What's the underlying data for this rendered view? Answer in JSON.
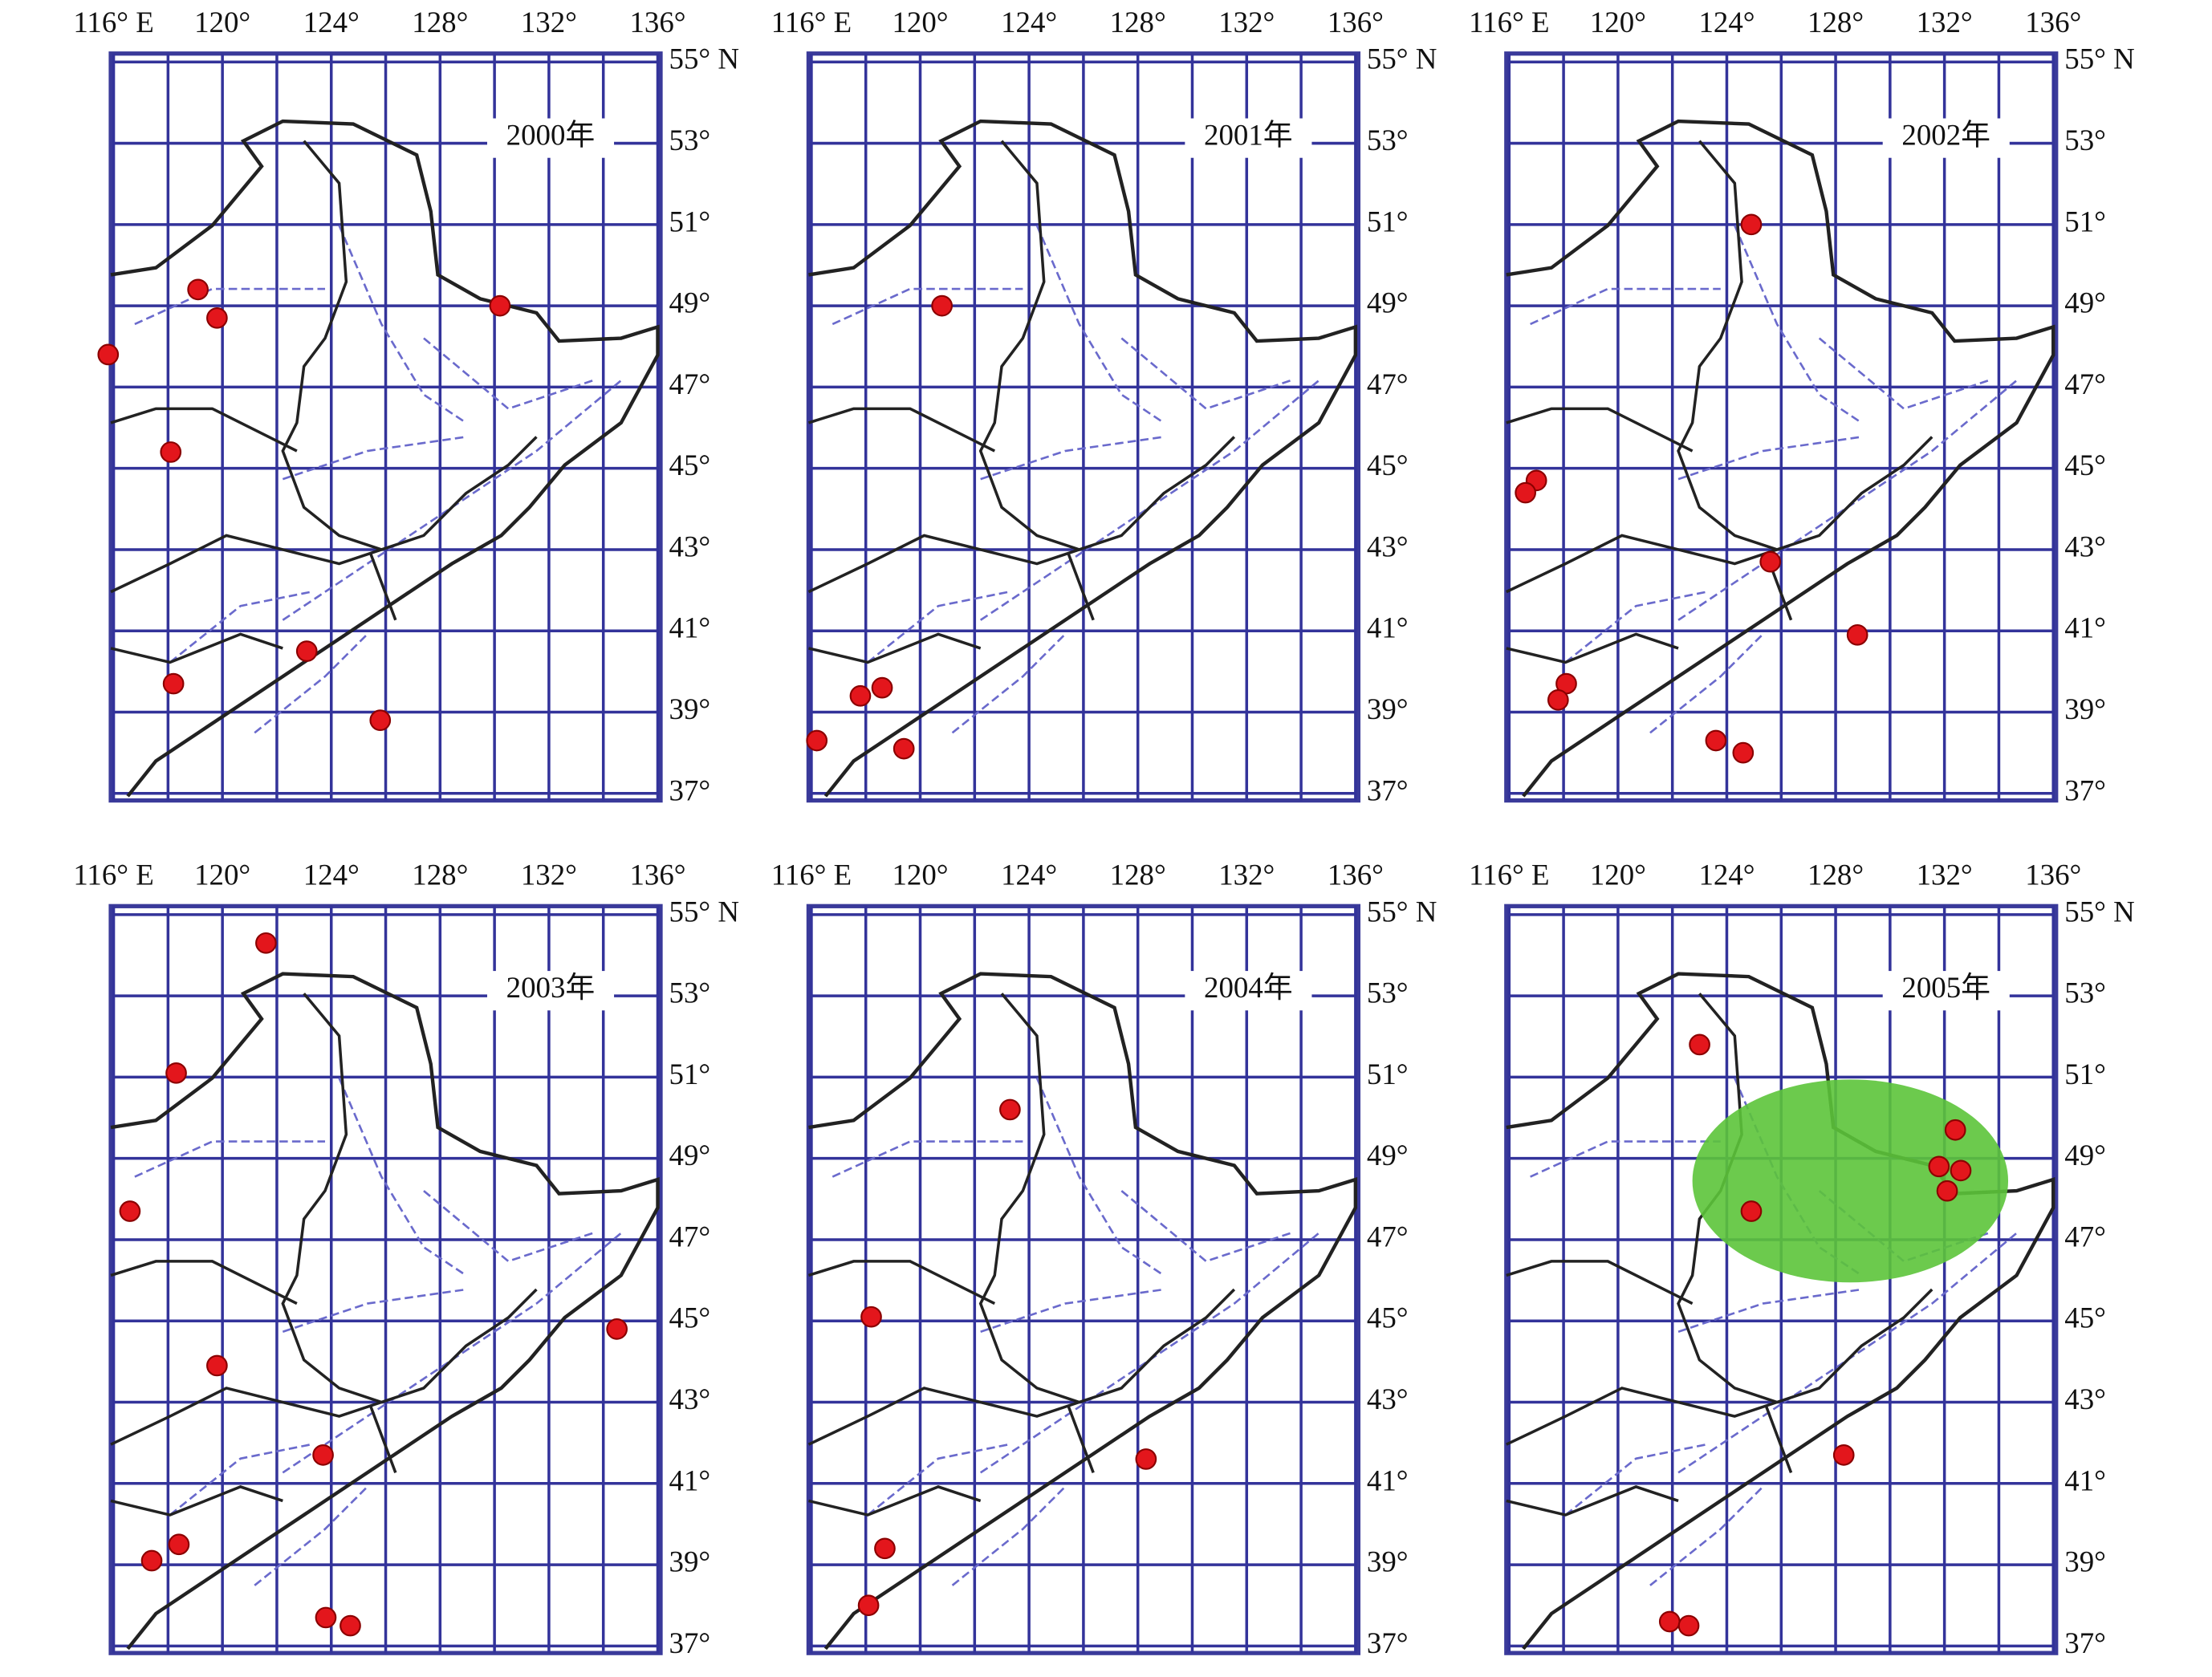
{
  "lon_ticks": [
    {
      "value": 116,
      "label": "116° E"
    },
    {
      "value": 120,
      "label": "120°"
    },
    {
      "value": 124,
      "label": "124°"
    },
    {
      "value": 128,
      "label": "128°"
    },
    {
      "value": 132,
      "label": "132°"
    },
    {
      "value": 136,
      "label": "136°"
    }
  ],
  "lat_ticks": [
    {
      "value": 55,
      "label": "55° N"
    },
    {
      "value": 53,
      "label": "53°"
    },
    {
      "value": 51,
      "label": "51°"
    },
    {
      "value": 49,
      "label": "49°"
    },
    {
      "value": 47,
      "label": "47°"
    },
    {
      "value": 45,
      "label": "45°"
    },
    {
      "value": 43,
      "label": "43°"
    },
    {
      "value": 41,
      "label": "41°"
    },
    {
      "value": 39,
      "label": "39°"
    },
    {
      "value": 37,
      "label": "37°"
    }
  ],
  "panels": [
    {
      "title": "2000年",
      "points": [
        [
          119.1,
          49.4
        ],
        [
          119.8,
          48.7
        ],
        [
          115.8,
          47.8
        ],
        [
          118.1,
          45.4
        ],
        [
          130.2,
          49.0
        ],
        [
          123.1,
          40.5
        ],
        [
          118.2,
          39.7
        ],
        [
          125.8,
          38.8
        ]
      ]
    },
    {
      "title": "2001年",
      "points": [
        [
          120.8,
          49.0
        ],
        [
          117.8,
          39.4
        ],
        [
          118.6,
          39.6
        ],
        [
          116.2,
          38.3
        ],
        [
          119.4,
          38.1
        ]
      ]
    },
    {
      "title": "2002年",
      "points": [
        [
          124.9,
          51.0
        ],
        [
          117.0,
          44.7
        ],
        [
          116.6,
          44.4
        ],
        [
          125.6,
          42.7
        ],
        [
          128.8,
          40.9
        ],
        [
          118.1,
          39.7
        ],
        [
          117.8,
          39.3
        ],
        [
          123.6,
          38.3
        ],
        [
          124.6,
          38.0
        ]
      ]
    },
    {
      "title": "2003年",
      "points": [
        [
          121.6,
          54.3
        ],
        [
          118.3,
          51.1
        ],
        [
          116.6,
          47.7
        ],
        [
          119.8,
          43.9
        ],
        [
          123.7,
          41.7
        ],
        [
          134.5,
          44.8
        ],
        [
          118.4,
          39.5
        ],
        [
          117.4,
          39.1
        ],
        [
          123.8,
          37.7
        ],
        [
          124.7,
          37.5
        ]
      ]
    },
    {
      "title": "2004年",
      "points": [
        [
          123.3,
          50.2
        ],
        [
          118.2,
          45.1
        ],
        [
          128.3,
          41.6
        ],
        [
          118.7,
          39.4
        ],
        [
          118.1,
          38.0
        ]
      ]
    },
    {
      "title": "2005年",
      "points": [
        [
          123.0,
          51.8
        ],
        [
          132.4,
          49.7
        ],
        [
          131.8,
          48.8
        ],
        [
          132.6,
          48.7
        ],
        [
          132.1,
          48.2
        ],
        [
          124.9,
          47.7
        ],
        [
          128.3,
          41.7
        ],
        [
          121.9,
          37.6
        ],
        [
          122.6,
          37.5
        ]
      ]
    }
  ]
}
